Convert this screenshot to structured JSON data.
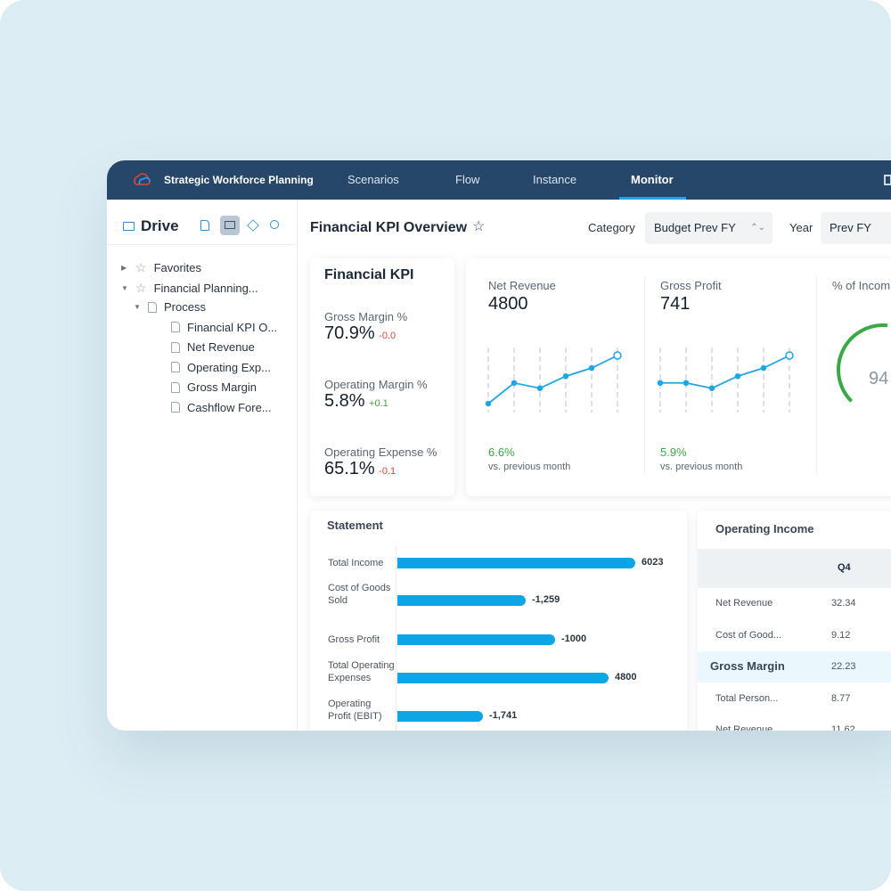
{
  "app": {
    "title": "Strategic Workforce Planning",
    "nav": [
      {
        "label": "Scenarios"
      },
      {
        "label": "Flow"
      },
      {
        "label": "Instance"
      },
      {
        "label": "Monitor",
        "active": true
      }
    ],
    "accent": "#1ea7e4",
    "nav_bg": "#26466a"
  },
  "sidebar": {
    "title": "Drive",
    "items": [
      {
        "label": "Favorites",
        "level": 0,
        "icon": "star-icon",
        "expander": "collapsed"
      },
      {
        "label": "Financial Planning...",
        "level": 0,
        "icon": "star-icon",
        "expander": "expanded"
      },
      {
        "label": "Process",
        "level": 1,
        "icon": "document-icon",
        "expander": "expanded"
      },
      {
        "label": "Financial KPI O...",
        "level": 2,
        "icon": "document-icon"
      },
      {
        "label": "Net Revenue",
        "level": 2,
        "icon": "document-icon"
      },
      {
        "label": "Operating Exp...",
        "level": 2,
        "icon": "document-icon"
      },
      {
        "label": "Gross Margin",
        "level": 2,
        "icon": "document-icon"
      },
      {
        "label": "Cashflow Fore...",
        "level": 2,
        "icon": "document-icon"
      }
    ]
  },
  "header": {
    "title": "Financial KPI Overview",
    "category_label": "Category",
    "category_value": "Budget Prev FY",
    "year_label": "Year",
    "year_value": "Prev FY"
  },
  "kpi": {
    "title": "Financial KPI",
    "items": [
      {
        "label": "Gross Margin %",
        "value": "70.9%",
        "delta": "-0.0",
        "trend": "down"
      },
      {
        "label": "Operating Margin %",
        "value": "5.8%",
        "delta": "+0.1",
        "trend": "up"
      },
      {
        "label": "Operating Expense %",
        "value": "65.1%",
        "delta": "-0.1",
        "trend": "down"
      }
    ]
  },
  "sparks": [
    {
      "label": "Net Revenue",
      "value": "4800",
      "change": "6.6%",
      "note": "vs. previous month",
      "points": [
        0,
        43,
        32,
        57,
        74,
        100
      ]
    },
    {
      "label": "Gross Profit",
      "value": "741",
      "change": "5.9%",
      "note": "vs. previous month",
      "points": [
        43,
        43,
        32,
        57,
        74,
        100
      ]
    }
  ],
  "gauge": {
    "label": "% of Incom",
    "value": "94",
    "color": "#3aa845"
  },
  "statement": {
    "title": "Statement",
    "bars": [
      {
        "label": "Total Income",
        "value": "6023",
        "fill": 0.89
      },
      {
        "label": "Cost of Goods Sold",
        "value": "-1,259",
        "fill": 0.48
      },
      {
        "label": "Gross Profit",
        "value": "-1000",
        "fill": 0.59
      },
      {
        "label": "Total Operating Expenses",
        "value": "4800",
        "fill": 0.79
      },
      {
        "label": "Operating Profit (EBIT)",
        "value": "-1,741",
        "fill": 0.32
      }
    ]
  },
  "operating": {
    "title": "Operating Income",
    "column": "Q4",
    "rows": [
      {
        "label": "Net Revenue",
        "value": "32.34"
      },
      {
        "label": "Cost of Good...",
        "value": "9.12"
      },
      {
        "label": "Gross Margin",
        "value": "22.23",
        "highlight": true
      },
      {
        "label": "Total Person...",
        "value": "8.77"
      },
      {
        "label": "Net Revenue",
        "value": "11.62"
      }
    ]
  }
}
